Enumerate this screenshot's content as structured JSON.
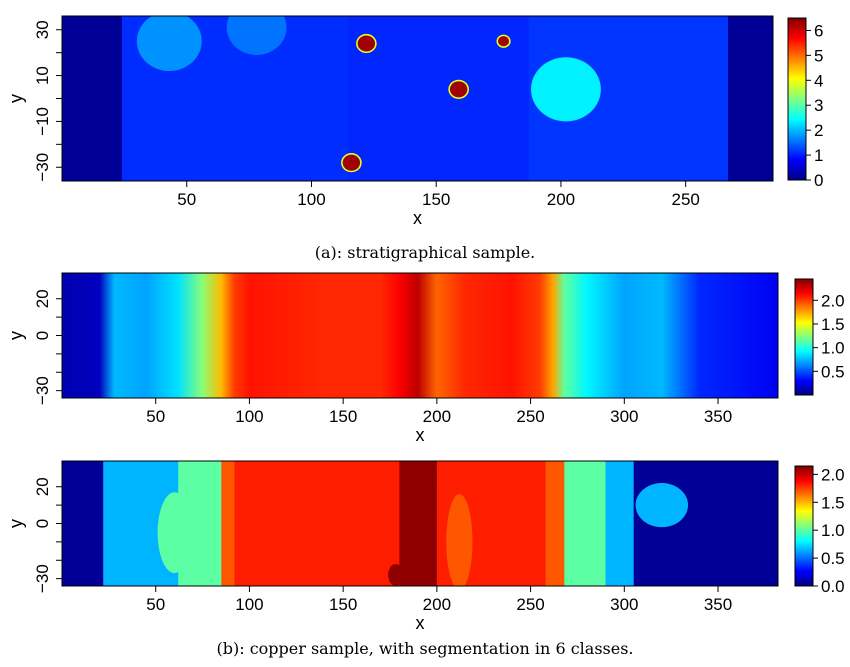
{
  "chart_data": [
    {
      "type": "heatmap",
      "xlabel": "x",
      "ylabel": "y",
      "xlim": [
        0,
        285
      ],
      "ylim": [
        -36,
        36
      ],
      "xticks": [
        50,
        100,
        150,
        200,
        250
      ],
      "yticks": [
        30,
        10,
        -10,
        -30
      ],
      "yticks_minor": [
        20,
        0,
        -20
      ],
      "colorbar": {
        "min": 0,
        "max": 6.5,
        "ticks": [
          0,
          1,
          2,
          3,
          4,
          5,
          6
        ]
      },
      "caption": "(a): stratigraphical sample.",
      "features": {
        "background_value": 0.15,
        "bands": [
          {
            "x": [
              0,
              24
            ],
            "value": 0.15
          },
          {
            "x": [
              24,
              115
            ],
            "value": 1.1
          },
          {
            "x": [
              115,
              187
            ],
            "value": 1.05
          },
          {
            "x": [
              187,
              267
            ],
            "value": 1.15
          },
          {
            "x": [
              267,
              285
            ],
            "value": 0.15
          }
        ],
        "disks": [
          {
            "cx": 43,
            "cy": 25,
            "r": 13,
            "value": 1.75
          },
          {
            "cx": 78,
            "cy": 31,
            "r": 12,
            "value": 1.55
          },
          {
            "cx": 202,
            "cy": 4,
            "r": 14,
            "value": 2.35
          },
          {
            "cx": 122,
            "cy": 24,
            "r": 3.5,
            "value": 6.3
          },
          {
            "cx": 159,
            "cy": 4,
            "r": 3.5,
            "value": 6.3
          },
          {
            "cx": 177,
            "cy": 25,
            "r": 2.2,
            "value": 6.3
          },
          {
            "cx": 116,
            "cy": -28,
            "r": 3.5,
            "value": 6.3
          }
        ]
      }
    },
    {
      "type": "heatmap",
      "xlabel": "x",
      "ylabel": "y",
      "xlim": [
        0,
        382
      ],
      "ylim": [
        -34,
        34
      ],
      "xticks": [
        50,
        100,
        150,
        200,
        250,
        300,
        350
      ],
      "yticks": [
        20,
        0,
        -30
      ],
      "yticks_minor": [
        10,
        -10,
        -20
      ],
      "colorbar": {
        "min": 0,
        "max": 2.45,
        "ticks": [
          0.5,
          1.0,
          1.5,
          2.0
        ],
        "tick_labels": [
          "0.5",
          "1.0",
          "1.5",
          "2.0"
        ]
      },
      "features": {
        "profile": [
          [
            0,
            0.12
          ],
          [
            20,
            0.15
          ],
          [
            28,
            0.75
          ],
          [
            45,
            0.7
          ],
          [
            62,
            0.85
          ],
          [
            75,
            1.25
          ],
          [
            85,
            1.7
          ],
          [
            92,
            2.0
          ],
          [
            100,
            2.1
          ],
          [
            140,
            2.05
          ],
          [
            170,
            2.05
          ],
          [
            180,
            2.15
          ],
          [
            190,
            2.3
          ],
          [
            200,
            1.9
          ],
          [
            215,
            2.05
          ],
          [
            240,
            2.1
          ],
          [
            255,
            2.0
          ],
          [
            262,
            1.75
          ],
          [
            268,
            1.15
          ],
          [
            280,
            0.9
          ],
          [
            300,
            0.7
          ],
          [
            320,
            0.75
          ],
          [
            340,
            0.4
          ],
          [
            382,
            0.28
          ]
        ]
      }
    },
    {
      "type": "heatmap",
      "xlabel": "x",
      "ylabel": "y",
      "xlim": [
        0,
        382
      ],
      "ylim": [
        -34,
        34
      ],
      "xticks": [
        50,
        100,
        150,
        200,
        250,
        300,
        350
      ],
      "yticks": [
        20,
        0,
        -30
      ],
      "yticks_minor": [
        10,
        -10,
        -20
      ],
      "colorbar": {
        "min": 0,
        "max": 2.15,
        "ticks": [
          0.0,
          0.5,
          1.0,
          1.5,
          2.0
        ],
        "tick_labels": [
          "0.0",
          "0.5",
          "1.0",
          "1.5",
          "2.0"
        ]
      },
      "caption": "(b): copper sample, with segmentation in 6 classes.",
      "classes": [
        0.05,
        0.65,
        1.0,
        1.7,
        1.82,
        2.12
      ],
      "features": {
        "segments": [
          {
            "x": [
              0,
              22
            ],
            "class": 0
          },
          {
            "x": [
              22,
              62
            ],
            "class": 1
          },
          {
            "x": [
              62,
              85
            ],
            "class": 2
          },
          {
            "x": [
              85,
              92
            ],
            "class": 3
          },
          {
            "x": [
              92,
              180
            ],
            "class": 4
          },
          {
            "x": [
              180,
              200
            ],
            "class": 5
          },
          {
            "x": [
              200,
              258
            ],
            "class": 4
          },
          {
            "x": [
              258,
              268
            ],
            "class": 3
          },
          {
            "x": [
              268,
              290
            ],
            "class": 2
          },
          {
            "x": [
              290,
              305
            ],
            "class": 1
          },
          {
            "x": [
              305,
              382
            ],
            "class": 0
          }
        ],
        "blobs": [
          {
            "cx": 60,
            "cy": -5,
            "rx": 9,
            "ry": 22,
            "class": 2
          },
          {
            "cx": 320,
            "cy": 10,
            "rx": 14,
            "ry": 12,
            "class": 1
          },
          {
            "cx": 212,
            "cy": -10,
            "rx": 7,
            "ry": 26,
            "class": 3
          },
          {
            "cx": 192,
            "cy": 24,
            "rx": 8,
            "ry": 10,
            "class": 5
          },
          {
            "cx": 178,
            "cy": -28,
            "rx": 4,
            "ry": 6,
            "class": 5
          }
        ]
      }
    }
  ]
}
